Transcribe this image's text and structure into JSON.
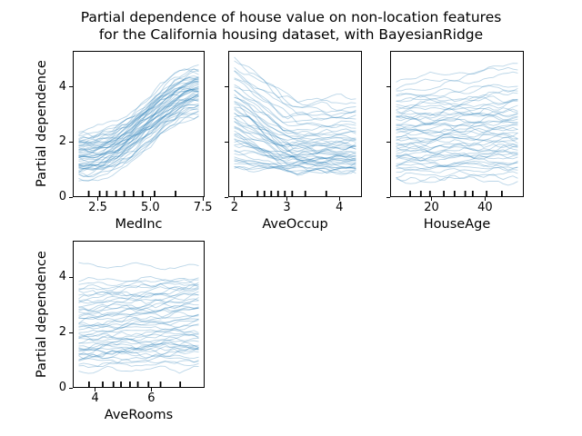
{
  "figure": {
    "title_line1": "Partial dependence of house value on non-location features",
    "title_line2": "for the California housing dataset, with BayesianRidge"
  },
  "style": {
    "line_color": "#1f77b4",
    "line_opacity": 0.3,
    "line_width": 0.9,
    "rug_color": "#000000",
    "spine_color": "#000000",
    "text_color": "#000000",
    "background": "#ffffff"
  },
  "chart_data": [
    {
      "type": "line",
      "subtype": "ice-curves",
      "feature": "MedInc",
      "xlabel": "MedInc",
      "ylabel": "Partial dependence",
      "show_ytick_labels": true,
      "xlim": [
        1.31,
        7.58
      ],
      "ylim": [
        0,
        5.32
      ],
      "xticks": [
        {
          "v": 2.5,
          "t": "2.5"
        },
        {
          "v": 5.0,
          "t": "5.0"
        },
        {
          "v": 7.5,
          "t": "7.5"
        }
      ],
      "yticks": [
        {
          "v": 0,
          "t": "0"
        },
        {
          "v": 2,
          "t": "2"
        },
        {
          "v": 4,
          "t": "4"
        }
      ],
      "deciles": [
        2.07,
        2.59,
        2.93,
        3.37,
        3.76,
        4.2,
        4.63,
        5.2,
        6.2
      ],
      "n_lines": 50,
      "lines": {
        "shape": "rise",
        "start": [
          0.55,
          0.75,
          0.85,
          0.9,
          1.0,
          1.05,
          1.1,
          1.15,
          1.2,
          1.25,
          1.3,
          1.35,
          1.4,
          1.45,
          1.5,
          1.55,
          1.6,
          1.65,
          1.7,
          1.75,
          1.8,
          1.85,
          1.9,
          1.95,
          2.0,
          2.05,
          2.1,
          2.2,
          2.3,
          2.45,
          0.95,
          1.02,
          1.12,
          1.22,
          1.32,
          1.42,
          1.52,
          1.62,
          1.72,
          1.82,
          1.92,
          2.02,
          2.12,
          1.08,
          1.28,
          1.48,
          1.68,
          1.88,
          2.25,
          0.7
        ],
        "end": [
          3.0,
          3.2,
          2.9,
          3.3,
          3.1,
          3.5,
          3.0,
          3.6,
          3.4,
          3.7,
          3.2,
          3.8,
          3.5,
          3.9,
          3.6,
          4.0,
          3.7,
          4.1,
          3.8,
          4.2,
          3.9,
          4.3,
          4.0,
          4.4,
          4.1,
          4.5,
          4.2,
          4.6,
          4.3,
          4.7,
          3.3,
          3.45,
          3.55,
          3.65,
          3.75,
          3.85,
          3.95,
          4.05,
          4.15,
          4.25,
          4.35,
          4.45,
          4.55,
          3.5,
          3.7,
          3.9,
          4.1,
          4.3,
          4.8,
          2.95
        ]
      }
    },
    {
      "type": "line",
      "subtype": "ice-curves",
      "feature": "AveOccup",
      "xlabel": "AveOccup",
      "ylabel": null,
      "show_ytick_labels": false,
      "xlim": [
        1.88,
        4.43
      ],
      "ylim": [
        0,
        5.32
      ],
      "xticks": [
        {
          "v": 2,
          "t": "2"
        },
        {
          "v": 3,
          "t": "3"
        },
        {
          "v": 4,
          "t": "4"
        }
      ],
      "yticks": [
        {
          "v": 0,
          "t": "0"
        },
        {
          "v": 2,
          "t": "2"
        },
        {
          "v": 4,
          "t": "4"
        }
      ],
      "deciles": [
        2.14,
        2.44,
        2.57,
        2.7,
        2.83,
        2.96,
        3.1,
        3.35,
        3.75
      ],
      "n_lines": 50,
      "lines": {
        "shape": "decay",
        "start": [
          5.1,
          4.95,
          4.8,
          4.6,
          4.4,
          4.2,
          4.0,
          3.9,
          3.8,
          3.7,
          3.6,
          3.5,
          3.4,
          3.3,
          3.2,
          3.1,
          3.0,
          2.95,
          2.9,
          2.8,
          2.7,
          2.6,
          2.5,
          2.4,
          2.3,
          2.2,
          2.1,
          2.0,
          1.95,
          1.9,
          1.8,
          1.7,
          1.6,
          1.5,
          1.4,
          1.3,
          1.25,
          1.2,
          1.15,
          1.1,
          3.45,
          3.15,
          2.85,
          2.55,
          2.25,
          4.5,
          4.1,
          3.75,
          2.05,
          1.05
        ],
        "end": [
          3.6,
          3.4,
          3.3,
          3.2,
          3.0,
          2.9,
          2.8,
          2.6,
          2.5,
          2.4,
          2.3,
          2.2,
          2.1,
          2.0,
          1.95,
          1.9,
          1.85,
          1.8,
          1.75,
          1.7,
          1.65,
          1.6,
          1.55,
          1.5,
          1.45,
          1.4,
          1.38,
          1.35,
          1.3,
          1.28,
          1.25,
          1.22,
          1.2,
          1.15,
          1.1,
          1.05,
          1.02,
          1.0,
          0.98,
          0.95,
          2.15,
          1.98,
          1.82,
          1.58,
          1.42,
          3.05,
          2.7,
          2.3,
          1.33,
          0.92
        ]
      }
    },
    {
      "type": "line",
      "subtype": "ice-curves",
      "feature": "HouseAge",
      "xlabel": "HouseAge",
      "ylabel": null,
      "show_ytick_labels": false,
      "xlim": [
        4.5,
        54.5
      ],
      "ylim": [
        0,
        5.32
      ],
      "xticks": [
        {
          "v": 20,
          "t": "20"
        },
        {
          "v": 40,
          "t": "40"
        }
      ],
      "yticks": [
        {
          "v": 0,
          "t": "0"
        },
        {
          "v": 2,
          "t": "2"
        },
        {
          "v": 4,
          "t": "4"
        }
      ],
      "deciles": [
        12.0,
        16.0,
        19.4,
        24.6,
        28.6,
        32.6,
        35.4,
        40.6,
        46.3
      ],
      "n_lines": 50,
      "lines": {
        "shape": "flat",
        "start": [
          0.62,
          0.8,
          0.95,
          1.05,
          1.15,
          1.25,
          1.35,
          1.45,
          1.55,
          1.65,
          1.75,
          1.85,
          1.95,
          2.05,
          2.15,
          2.25,
          2.35,
          2.45,
          2.55,
          2.65,
          2.75,
          2.85,
          2.95,
          3.05,
          3.15,
          3.3,
          3.45,
          3.6,
          3.8,
          4.0,
          4.25,
          1.1,
          1.4,
          1.7,
          2.0,
          2.3,
          2.6,
          2.9,
          3.2,
          3.5,
          1.2,
          1.5,
          1.8,
          2.1,
          2.4,
          2.7,
          3.0,
          3.35,
          3.7,
          0.7
        ],
        "end": [
          0.6,
          0.85,
          1.0,
          1.1,
          1.2,
          1.3,
          1.5,
          1.55,
          1.6,
          1.75,
          1.8,
          2.0,
          2.05,
          2.2,
          2.3,
          2.4,
          2.55,
          2.6,
          2.7,
          2.85,
          2.95,
          3.05,
          3.1,
          3.25,
          3.4,
          3.6,
          3.8,
          4.1,
          4.5,
          4.75,
          4.8,
          1.15,
          1.5,
          1.8,
          2.15,
          2.45,
          2.75,
          3.05,
          3.4,
          3.75,
          1.25,
          1.6,
          1.9,
          2.25,
          2.55,
          2.85,
          3.2,
          3.55,
          4.0,
          0.72
        ]
      }
    },
    {
      "type": "line",
      "subtype": "ice-curves",
      "feature": "AveRooms",
      "xlabel": "AveRooms",
      "ylabel": "Partial dependence",
      "show_ytick_labels": true,
      "xlim": [
        3.2,
        7.9
      ],
      "ylim": [
        0,
        5.32
      ],
      "xticks": [
        {
          "v": 4,
          "t": "4"
        },
        {
          "v": 6,
          "t": "6"
        }
      ],
      "yticks": [
        {
          "v": 0,
          "t": "0"
        },
        {
          "v": 2,
          "t": "2"
        },
        {
          "v": 4,
          "t": "4"
        }
      ],
      "deciles": [
        3.78,
        4.27,
        4.65,
        4.92,
        5.24,
        5.52,
        5.9,
        6.33,
        7.03
      ],
      "n_lines": 50,
      "lines": {
        "shape": "flat",
        "start": [
          4.45,
          0.62,
          0.8,
          0.95,
          1.05,
          1.15,
          1.25,
          1.3,
          1.35,
          1.4,
          1.45,
          1.5,
          1.6,
          1.7,
          1.8,
          1.9,
          2.0,
          2.1,
          2.2,
          2.3,
          2.4,
          2.5,
          2.6,
          2.7,
          2.8,
          2.9,
          3.0,
          3.1,
          3.2,
          3.3,
          3.45,
          3.6,
          3.75,
          3.9,
          1.1,
          1.33,
          1.55,
          1.78,
          2.05,
          2.28,
          2.52,
          2.75,
          3.05,
          3.28,
          3.52,
          0.88,
          1.22,
          1.68,
          2.15,
          2.62
        ],
        "end": [
          4.35,
          0.7,
          0.9,
          1.05,
          1.15,
          1.3,
          1.4,
          1.45,
          1.5,
          1.55,
          1.65,
          1.7,
          1.8,
          1.95,
          2.1,
          2.2,
          2.3,
          2.45,
          2.55,
          2.7,
          2.8,
          2.9,
          3.0,
          3.1,
          3.2,
          3.3,
          3.4,
          3.5,
          3.55,
          3.65,
          3.75,
          3.85,
          3.9,
          3.95,
          1.3,
          1.55,
          1.8,
          2.1,
          2.4,
          2.65,
          2.9,
          3.15,
          3.45,
          3.6,
          3.8,
          1.0,
          1.45,
          1.95,
          2.5,
          2.95
        ]
      }
    }
  ]
}
